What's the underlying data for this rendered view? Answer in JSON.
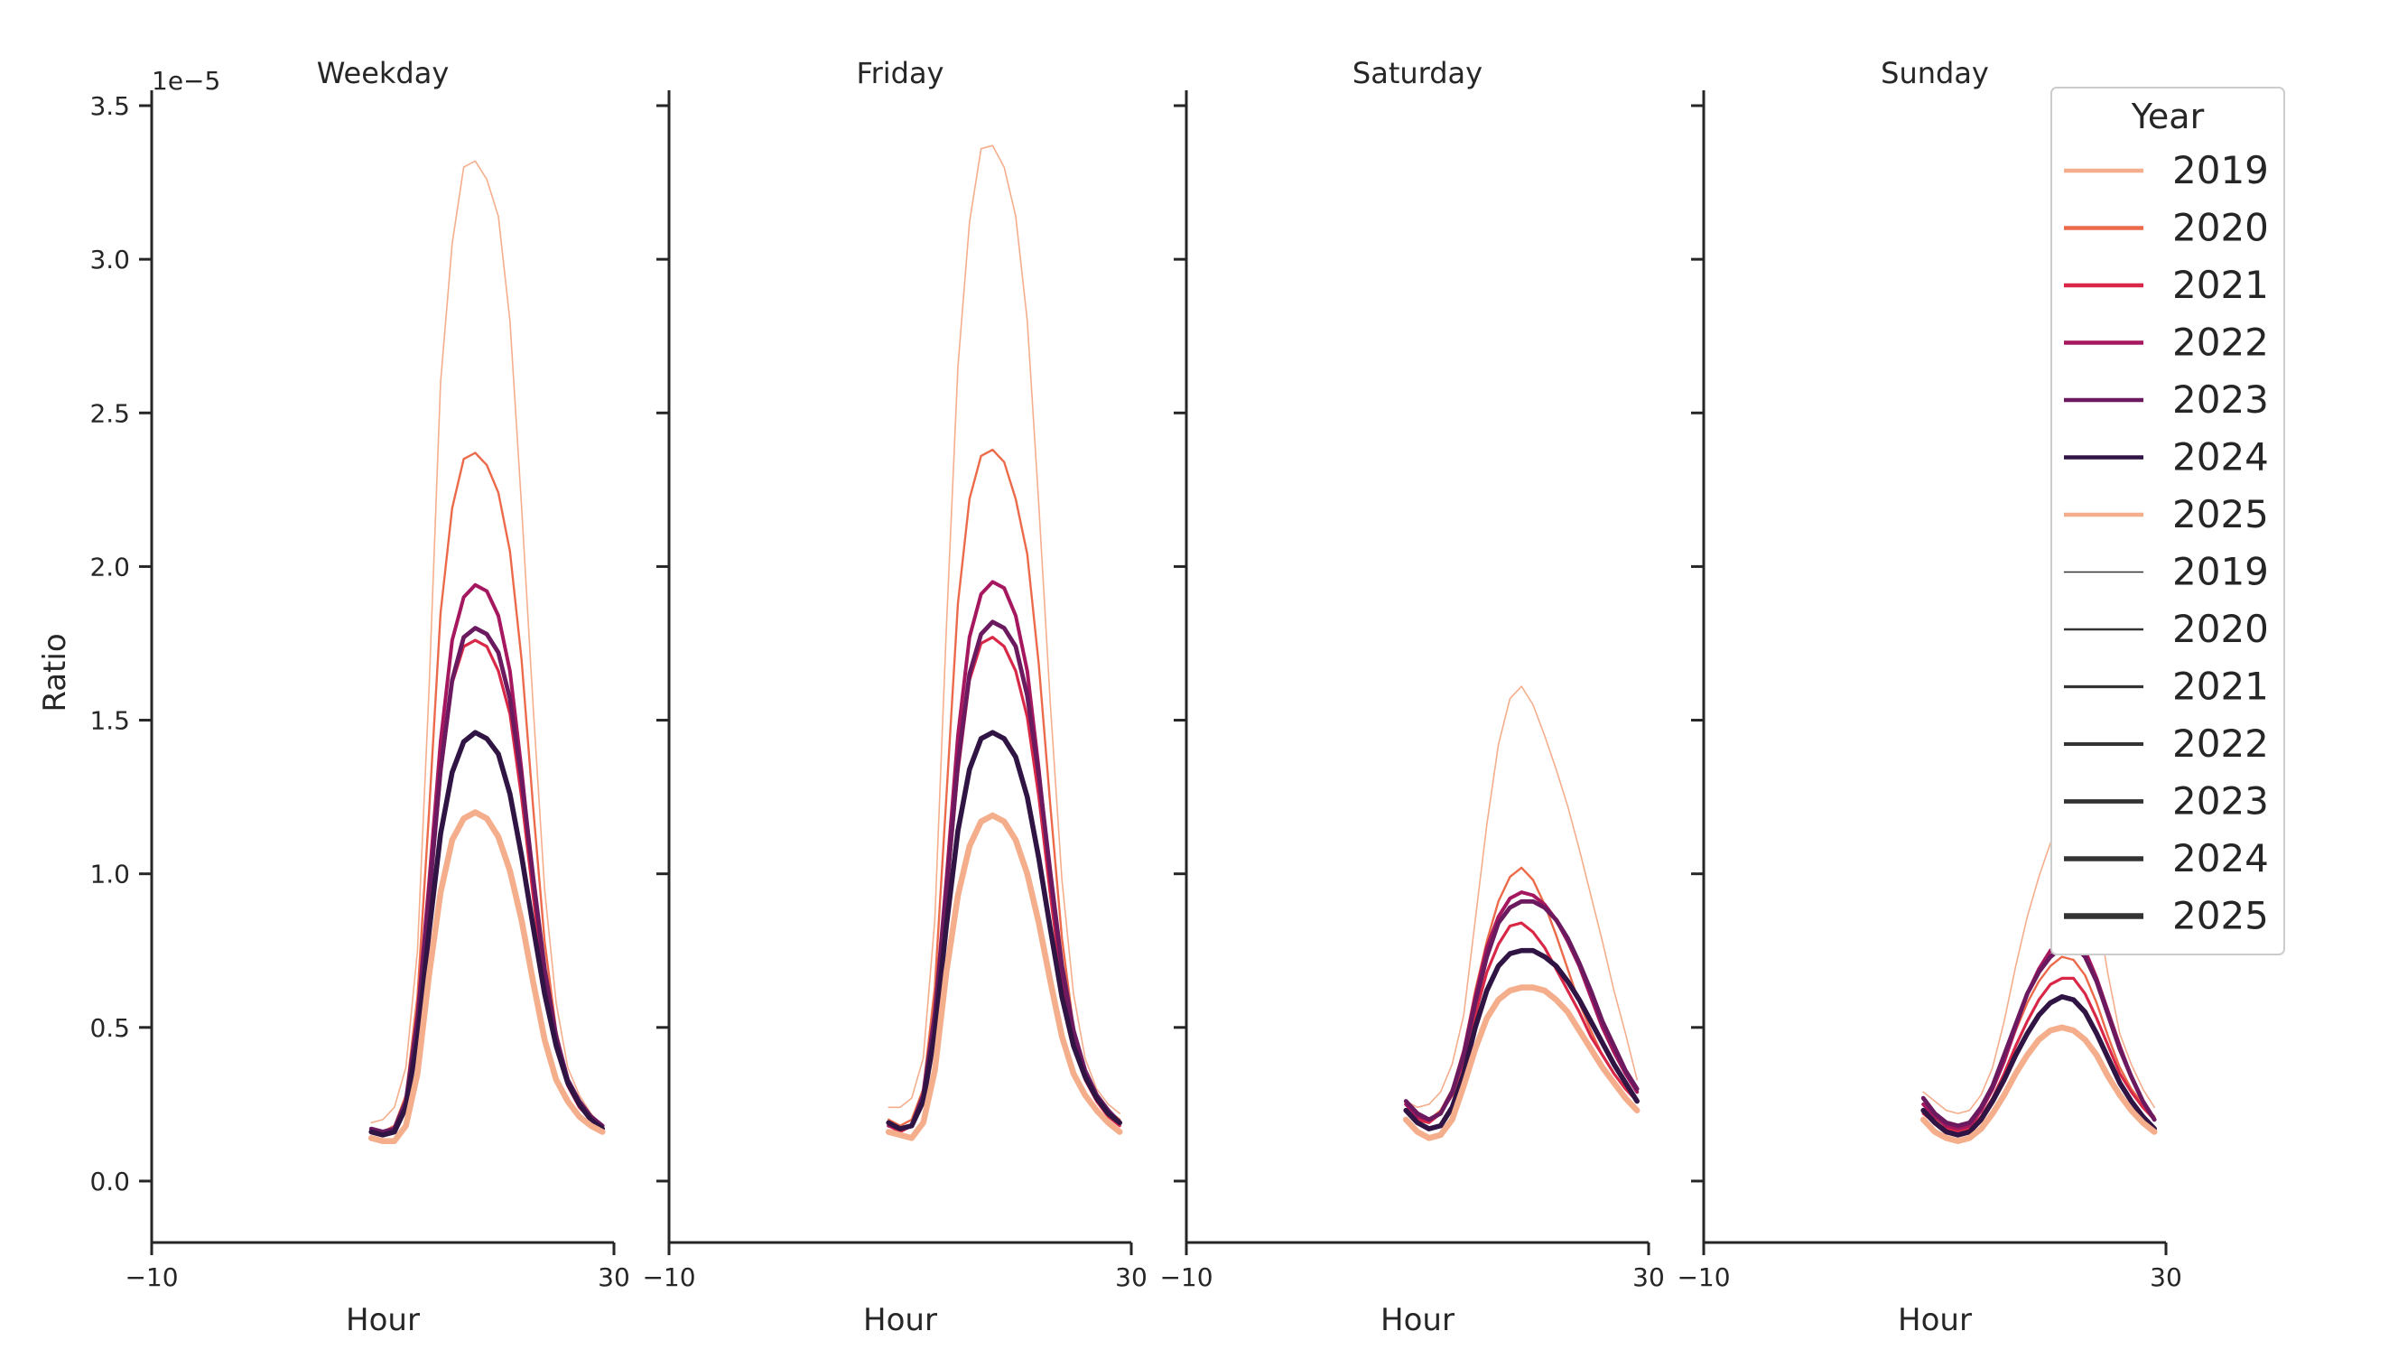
{
  "chart_data": {
    "type": "line",
    "layout": "facet-columns",
    "ylabel": "Ratio",
    "y_offset_label": "1e−5",
    "ylim": [
      -2e-06,
      3.55e-05
    ],
    "xlim": [
      -10,
      30
    ],
    "xticks": [
      "−10",
      "30"
    ],
    "yticks": [
      "0.0",
      "0.5",
      "1.0",
      "1.5",
      "2.0",
      "2.5",
      "3.0",
      "3.5"
    ],
    "grid": false,
    "legend": {
      "title": "Year",
      "placement": "upper-right",
      "color_entries": [
        {
          "label": "2019",
          "color": "#f5ae8c"
        },
        {
          "label": "2020",
          "color": "#ec6a4a"
        },
        {
          "label": "2021",
          "color": "#d92847"
        },
        {
          "label": "2022",
          "color": "#a5175e"
        },
        {
          "label": "2023",
          "color": "#6b1a60"
        },
        {
          "label": "2024",
          "color": "#2f1444"
        },
        {
          "label": "2025",
          "color": "#f5ae8c"
        }
      ],
      "size_entries": [
        {
          "label": "2019",
          "width": 1.6
        },
        {
          "label": "2020",
          "width": 2.4
        },
        {
          "label": "2021",
          "width": 3.2
        },
        {
          "label": "2022",
          "width": 4.0
        },
        {
          "label": "2023",
          "width": 4.8
        },
        {
          "label": "2024",
          "width": 5.6
        },
        {
          "label": "2025",
          "width": 6.6
        }
      ]
    },
    "x": [
      9,
      10,
      11,
      12,
      13,
      14,
      15,
      16,
      17,
      18,
      19,
      20,
      21,
      22,
      23,
      24,
      25,
      26,
      27,
      28,
      29
    ],
    "panels": [
      {
        "title": "Weekday",
        "xlabel": "Hour",
        "series": [
          {
            "name": "2019",
            "color": "#f5ae8c",
            "width": 1.6,
            "values": [
              1.9e-06,
              2e-06,
              2.4e-06,
              3.7e-06,
              7.5e-06,
              1.6e-05,
              2.6e-05,
              3.05e-05,
              3.3e-05,
              3.32e-05,
              3.26e-05,
              3.14e-05,
              2.8e-05,
              2.2e-05,
              1.55e-05,
              9.5e-06,
              5.8e-06,
              3.7e-06,
              2.8e-06,
              2.2e-06,
              1.8e-06
            ]
          },
          {
            "name": "2020",
            "color": "#ec6a4a",
            "width": 2.4,
            "values": [
              1.7e-06,
              1.6e-06,
              1.8e-06,
              2.8e-06,
              6e-06,
              1.2e-05,
              1.85e-05,
              2.19e-05,
              2.35e-05,
              2.37e-05,
              2.33e-05,
              2.24e-05,
              2.05e-05,
              1.7e-05,
              1.22e-05,
              7.8e-06,
              4.9e-06,
              3.3e-06,
              2.5e-06,
              2.1e-06,
              1.8e-06
            ]
          },
          {
            "name": "2021",
            "color": "#d92847",
            "width": 3.2,
            "values": [
              1.6e-06,
              1.5e-06,
              1.7e-06,
              2.6e-06,
              5.2e-06,
              9e-06,
              1.32e-05,
              1.62e-05,
              1.74e-05,
              1.76e-05,
              1.74e-05,
              1.66e-05,
              1.52e-05,
              1.25e-05,
              9.3e-06,
              6.3e-06,
              4.3e-06,
              3.1e-06,
              2.4e-06,
              2e-06,
              1.7e-06
            ]
          },
          {
            "name": "2022",
            "color": "#a5175e",
            "width": 4.0,
            "values": [
              1.6e-06,
              1.5e-06,
              1.7e-06,
              2.6e-06,
              5.4e-06,
              9.7e-06,
              1.43e-05,
              1.76e-05,
              1.9e-05,
              1.94e-05,
              1.92e-05,
              1.84e-05,
              1.66e-05,
              1.34e-05,
              9.8e-06,
              6.6e-06,
              4.5e-06,
              3.2e-06,
              2.5e-06,
              2.1e-06,
              1.8e-06
            ]
          },
          {
            "name": "2023",
            "color": "#6b1a60",
            "width": 4.8,
            "values": [
              1.7e-06,
              1.6e-06,
              1.7e-06,
              2.6e-06,
              5.2e-06,
              9.2e-06,
              1.34e-05,
              1.63e-05,
              1.77e-05,
              1.8e-05,
              1.78e-05,
              1.72e-05,
              1.57e-05,
              1.31e-05,
              9.9e-06,
              6.9e-06,
              4.7e-06,
              3.3e-06,
              2.6e-06,
              2.1e-06,
              1.8e-06
            ]
          },
          {
            "name": "2024",
            "color": "#2f1444",
            "width": 5.6,
            "values": [
              1.6e-06,
              1.5e-06,
              1.6e-06,
              2.4e-06,
              4.6e-06,
              8.1e-06,
              1.13e-05,
              1.33e-05,
              1.43e-05,
              1.46e-05,
              1.44e-05,
              1.39e-05,
              1.26e-05,
              1.06e-05,
              8.3e-06,
              6.1e-06,
              4.4e-06,
              3.2e-06,
              2.5e-06,
              2e-06,
              1.7e-06
            ]
          },
          {
            "name": "2025",
            "color": "#f5ae8c",
            "width": 6.6,
            "values": [
              1.4e-06,
              1.3e-06,
              1.3e-06,
              1.8e-06,
              3.5e-06,
              6.7e-06,
              9.4e-06,
              1.11e-05,
              1.18e-05,
              1.2e-05,
              1.18e-05,
              1.12e-05,
              1.01e-05,
              8.5e-06,
              6.5e-06,
              4.6e-06,
              3.3e-06,
              2.6e-06,
              2.1e-06,
              1.8e-06,
              1.6e-06
            ]
          }
        ]
      },
      {
        "title": "Friday",
        "xlabel": "Hour",
        "series": [
          {
            "name": "2019",
            "color": "#f5ae8c",
            "width": 1.6,
            "values": [
              2.4e-06,
              2.4e-06,
              2.7e-06,
              4e-06,
              8.5e-06,
              1.8e-05,
              2.65e-05,
              3.12e-05,
              3.36e-05,
              3.37e-05,
              3.3e-05,
              3.14e-05,
              2.8e-05,
              2.2e-05,
              1.55e-05,
              9.8e-06,
              6.1e-06,
              4e-06,
              3e-06,
              2.5e-06,
              2.2e-06
            ]
          },
          {
            "name": "2020",
            "color": "#ec6a4a",
            "width": 2.4,
            "values": [
              2e-06,
              1.8e-06,
              2e-06,
              3e-06,
              6.3e-06,
              1.25e-05,
              1.88e-05,
              2.22e-05,
              2.36e-05,
              2.38e-05,
              2.34e-05,
              2.22e-05,
              2.04e-05,
              1.68e-05,
              1.22e-05,
              7.9e-06,
              5e-06,
              3.5e-06,
              2.7e-06,
              2.3e-06,
              2e-06
            ]
          },
          {
            "name": "2021",
            "color": "#d92847",
            "width": 3.2,
            "values": [
              1.8e-06,
              1.6e-06,
              1.8e-06,
              2.7e-06,
              5.4e-06,
              9.2e-06,
              1.33e-05,
              1.63e-05,
              1.75e-05,
              1.77e-05,
              1.74e-05,
              1.66e-05,
              1.51e-05,
              1.25e-05,
              9.3e-06,
              6.4e-06,
              4.5e-06,
              3.3e-06,
              2.6e-06,
              2.1e-06,
              1.8e-06
            ]
          },
          {
            "name": "2022",
            "color": "#a5175e",
            "width": 4.0,
            "values": [
              1.8e-06,
              1.7e-06,
              1.8e-06,
              2.7e-06,
              5.5e-06,
              9.8e-06,
              1.45e-05,
              1.77e-05,
              1.91e-05,
              1.95e-05,
              1.93e-05,
              1.84e-05,
              1.66e-05,
              1.34e-05,
              9.8e-06,
              6.7e-06,
              4.6e-06,
              3.4e-06,
              2.7e-06,
              2.2e-06,
              1.9e-06
            ]
          },
          {
            "name": "2023",
            "color": "#6b1a60",
            "width": 4.8,
            "values": [
              1.9e-06,
              1.7e-06,
              1.8e-06,
              2.8e-06,
              5.4e-06,
              9.4e-06,
              1.36e-05,
              1.65e-05,
              1.78e-05,
              1.82e-05,
              1.8e-05,
              1.74e-05,
              1.58e-05,
              1.32e-05,
              1e-05,
              7e-06,
              4.9e-06,
              3.6e-06,
              2.8e-06,
              2.3e-06,
              1.9e-06
            ]
          },
          {
            "name": "2024",
            "color": "#2f1444",
            "width": 5.6,
            "values": [
              1.9e-06,
              1.7e-06,
              1.8e-06,
              2.6e-06,
              4.8e-06,
              8.3e-06,
              1.14e-05,
              1.34e-05,
              1.44e-05,
              1.46e-05,
              1.44e-05,
              1.38e-05,
              1.25e-05,
              1.05e-05,
              8.2e-06,
              6e-06,
              4.4e-06,
              3.4e-06,
              2.7e-06,
              2.2e-06,
              1.9e-06
            ]
          },
          {
            "name": "2025",
            "color": "#f5ae8c",
            "width": 6.6,
            "values": [
              1.6e-06,
              1.5e-06,
              1.4e-06,
              1.9e-06,
              3.6e-06,
              6.8e-06,
              9.3e-06,
              1.09e-05,
              1.17e-05,
              1.19e-05,
              1.17e-05,
              1.11e-05,
              1e-05,
              8.4e-06,
              6.5e-06,
              4.7e-06,
              3.5e-06,
              2.8e-06,
              2.3e-06,
              1.9e-06,
              1.6e-06
            ]
          }
        ]
      },
      {
        "title": "Saturday",
        "xlabel": "Hour",
        "series": [
          {
            "name": "2019",
            "color": "#f5ae8c",
            "width": 1.6,
            "values": [
              2.6e-06,
              2.4e-06,
              2.5e-06,
              2.9e-06,
              3.8e-06,
              5.4e-06,
              8.5e-06,
              1.16e-05,
              1.42e-05,
              1.57e-05,
              1.61e-05,
              1.55e-05,
              1.45e-05,
              1.34e-05,
              1.22e-05,
              1.08e-05,
              9.3e-06,
              7.8e-06,
              6.2e-06,
              4.8e-06,
              3.3e-06
            ]
          },
          {
            "name": "2020",
            "color": "#ec6a4a",
            "width": 2.4,
            "values": [
              2.3e-06,
              2.1e-06,
              2e-06,
              2.3e-06,
              3e-06,
              4.3e-06,
              6.2e-06,
              7.8e-06,
              9.1e-06,
              9.9e-06,
              1.02e-05,
              9.8e-06,
              9e-06,
              8e-06,
              6.9e-06,
              5.8e-06,
              4.9e-06,
              4.1e-06,
              3.5e-06,
              3e-06,
              2.6e-06
            ]
          },
          {
            "name": "2021",
            "color": "#d92847",
            "width": 3.2,
            "values": [
              2.3e-06,
              2e-06,
              1.9e-06,
              2.2e-06,
              2.8e-06,
              3.9e-06,
              5.4e-06,
              6.8e-06,
              7.7e-06,
              8.3e-06,
              8.4e-06,
              8.1e-06,
              7.6e-06,
              6.9e-06,
              6.2e-06,
              5.5e-06,
              4.7e-06,
              4.1e-06,
              3.5e-06,
              3e-06,
              2.6e-06
            ]
          },
          {
            "name": "2022",
            "color": "#a5175e",
            "width": 4.0,
            "values": [
              2.5e-06,
              2.1e-06,
              2e-06,
              2.2e-06,
              2.9e-06,
              4.2e-06,
              6e-06,
              7.6e-06,
              8.6e-06,
              9.2e-06,
              9.4e-06,
              9.3e-06,
              9e-06,
              8.5e-06,
              7.8e-06,
              7e-06,
              6e-06,
              5e-06,
              4.2e-06,
              3.5e-06,
              2.9e-06
            ]
          },
          {
            "name": "2023",
            "color": "#6b1a60",
            "width": 4.8,
            "values": [
              2.6e-06,
              2.2e-06,
              2e-06,
              2.2e-06,
              2.9e-06,
              4.1e-06,
              5.8e-06,
              7.3e-06,
              8.4e-06,
              8.9e-06,
              9.1e-06,
              9.1e-06,
              8.9e-06,
              8.5e-06,
              7.9e-06,
              7.1e-06,
              6.2e-06,
              5.2e-06,
              4.4e-06,
              3.6e-06,
              3e-06
            ]
          },
          {
            "name": "2024",
            "color": "#2f1444",
            "width": 5.6,
            "values": [
              2.3e-06,
              1.9e-06,
              1.7e-06,
              1.8e-06,
              2.4e-06,
              3.5e-06,
              5e-06,
              6.2e-06,
              7e-06,
              7.4e-06,
              7.5e-06,
              7.5e-06,
              7.3e-06,
              7e-06,
              6.5e-06,
              5.9e-06,
              5.2e-06,
              4.5e-06,
              3.8e-06,
              3.2e-06,
              2.6e-06
            ]
          },
          {
            "name": "2025",
            "color": "#f5ae8c",
            "width": 6.6,
            "values": [
              2e-06,
              1.6e-06,
              1.4e-06,
              1.5e-06,
              2e-06,
              3.1e-06,
              4.3e-06,
              5.3e-06,
              5.9e-06,
              6.2e-06,
              6.3e-06,
              6.3e-06,
              6.2e-06,
              5.9e-06,
              5.5e-06,
              4.9e-06,
              4.3e-06,
              3.7e-06,
              3.2e-06,
              2.7e-06,
              2.3e-06
            ]
          }
        ]
      },
      {
        "title": "Sunday",
        "xlabel": "Hour",
        "series": [
          {
            "name": "2019",
            "color": "#f5ae8c",
            "width": 1.6,
            "values": [
              2.9e-06,
              2.6e-06,
              2.3e-06,
              2.2e-06,
              2.3e-06,
              2.8e-06,
              3.7e-06,
              5.2e-06,
              7e-06,
              8.6e-06,
              9.9e-06,
              1.1e-05,
              1.16e-05,
              1.14e-05,
              1.06e-05,
              8.9e-06,
              6.7e-06,
              4.8e-06,
              3.8e-06,
              3e-06,
              2.4e-06
            ]
          },
          {
            "name": "2020",
            "color": "#ec6a4a",
            "width": 2.4,
            "values": [
              2.3e-06,
              2e-06,
              1.8e-06,
              1.7e-06,
              1.9e-06,
              2.4e-06,
              3e-06,
              3.9e-06,
              4.9e-06,
              5.8e-06,
              6.5e-06,
              7e-06,
              7.3e-06,
              7.2e-06,
              6.7e-06,
              5.8e-06,
              4.7e-06,
              3.7e-06,
              3e-06,
              2.5e-06,
              2.1e-06
            ]
          },
          {
            "name": "2021",
            "color": "#d92847",
            "width": 3.2,
            "values": [
              2.2e-06,
              1.9e-06,
              1.7e-06,
              1.6e-06,
              1.7e-06,
              2.1e-06,
              2.7e-06,
              3.5e-06,
              4.4e-06,
              5.2e-06,
              5.9e-06,
              6.4e-06,
              6.6e-06,
              6.6e-06,
              6.1e-06,
              5.3e-06,
              4.4e-06,
              3.5e-06,
              2.9e-06,
              2.4e-06,
              2e-06
            ]
          },
          {
            "name": "2022",
            "color": "#a5175e",
            "width": 4.0,
            "values": [
              2.5e-06,
              2.1e-06,
              1.8e-06,
              1.7e-06,
              1.8e-06,
              2.3e-06,
              3e-06,
              3.9e-06,
              5e-06,
              6.1e-06,
              6.9e-06,
              7.5e-06,
              7.8e-06,
              7.9e-06,
              7.5e-06,
              6.6e-06,
              5.5e-06,
              4.4e-06,
              3.4e-06,
              2.6e-06,
              2e-06
            ]
          },
          {
            "name": "2023",
            "color": "#6b1a60",
            "width": 4.8,
            "values": [
              2.7e-06,
              2.2e-06,
              1.9e-06,
              1.8e-06,
              1.9e-06,
              2.4e-06,
              3.1e-06,
              4.1e-06,
              5.1e-06,
              6.1e-06,
              6.8e-06,
              7.3e-06,
              7.6e-06,
              7.7e-06,
              7.3e-06,
              6.5e-06,
              5.4e-06,
              4.3e-06,
              3.4e-06,
              2.6e-06,
              2e-06
            ]
          },
          {
            "name": "2024",
            "color": "#2f1444",
            "width": 5.6,
            "values": [
              2.3e-06,
              1.9e-06,
              1.6e-06,
              1.5e-06,
              1.6e-06,
              2e-06,
              2.6e-06,
              3.3e-06,
              4.1e-06,
              4.8e-06,
              5.4e-06,
              5.8e-06,
              6e-06,
              5.9e-06,
              5.5e-06,
              4.8e-06,
              4e-06,
              3.2e-06,
              2.6e-06,
              2.1e-06,
              1.7e-06
            ]
          },
          {
            "name": "2025",
            "color": "#f5ae8c",
            "width": 6.6,
            "values": [
              2e-06,
              1.6e-06,
              1.4e-06,
              1.3e-06,
              1.4e-06,
              1.7e-06,
              2.2e-06,
              2.8e-06,
              3.5e-06,
              4.1e-06,
              4.6e-06,
              4.9e-06,
              5e-06,
              4.9e-06,
              4.6e-06,
              4.1e-06,
              3.4e-06,
              2.8e-06,
              2.3e-06,
              1.9e-06,
              1.6e-06
            ]
          }
        ]
      }
    ]
  }
}
